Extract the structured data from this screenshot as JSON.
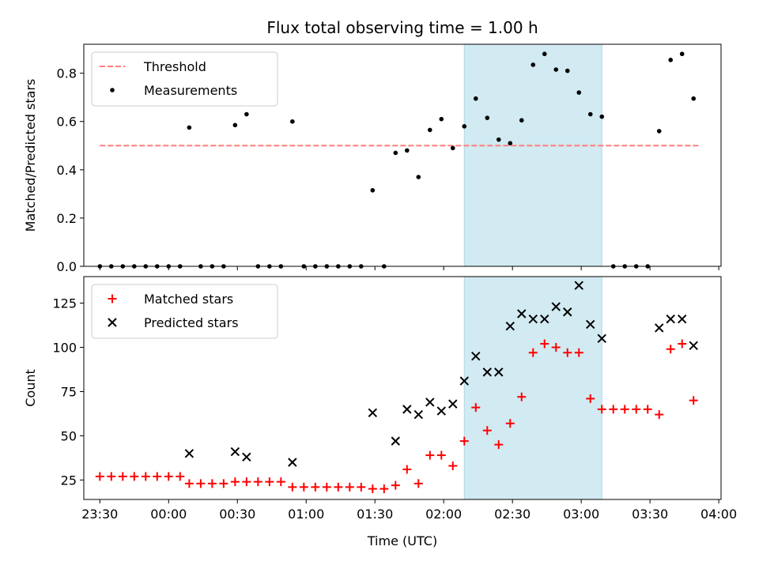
{
  "figure": {
    "title": "Flux total observing time = 1.00 h",
    "xlabel": "Time (UTC)"
  },
  "chart_data": [
    {
      "type": "scatter",
      "panel": "top",
      "ylabel": "Matched/Predicted stars",
      "xlim": [
        "23:23",
        "04:01"
      ],
      "ylim": [
        0,
        0.92
      ],
      "yticks": [
        0.0,
        0.2,
        0.4,
        0.6,
        0.8
      ],
      "yticklabels": [
        "0.0",
        "0.2",
        "0.4",
        "0.6",
        "0.8"
      ],
      "shaded_span": {
        "from": "02:09",
        "to": "03:09",
        "color": "#add8e6"
      },
      "legend_position": "upper left",
      "series": [
        {
          "name": "Threshold",
          "kind": "dashed-line",
          "color": "#ff7f7f",
          "x": [
            "23:30",
            "03:52"
          ],
          "y": [
            0.5,
            0.5
          ]
        },
        {
          "name": "Measurements",
          "kind": "points",
          "color": "#000000",
          "x": [
            "23:30",
            "23:35",
            "23:40",
            "23:45",
            "23:50",
            "23:55",
            "00:00",
            "00:05",
            "00:09",
            "00:14",
            "00:19",
            "00:24",
            "00:29",
            "00:34",
            "00:39",
            "00:44",
            "00:49",
            "00:54",
            "00:59",
            "01:04",
            "01:09",
            "01:14",
            "01:19",
            "01:24",
            "01:29",
            "01:34",
            "01:39",
            "01:44",
            "01:49",
            "01:54",
            "01:59",
            "02:04",
            "02:09",
            "02:14",
            "02:19",
            "02:24",
            "02:29",
            "02:34",
            "02:39",
            "02:44",
            "02:49",
            "02:54",
            "02:59",
            "03:04",
            "03:09",
            "03:14",
            "03:19",
            "03:24",
            "03:29",
            "03:34",
            "03:39",
            "03:44",
            "03:49"
          ],
          "y": [
            0,
            0,
            0,
            0,
            0,
            0,
            0,
            0,
            0.575,
            0,
            0,
            0,
            0.585,
            0.63,
            0,
            0,
            0,
            0.6,
            0,
            0,
            0,
            0,
            0,
            0,
            0.315,
            0,
            0.47,
            0.48,
            0.37,
            0.565,
            0.61,
            0.49,
            0.58,
            0.695,
            0.615,
            0.525,
            0.51,
            0.605,
            0.835,
            0.88,
            0.815,
            0.81,
            0.72,
            0.63,
            0.62,
            0,
            0,
            0,
            0,
            0.56,
            0.855,
            0.88,
            0.695
          ]
        }
      ]
    },
    {
      "type": "scatter",
      "panel": "bottom",
      "ylabel": "Count",
      "xlim": [
        "23:23",
        "04:01"
      ],
      "ylim": [
        14,
        140
      ],
      "yticks": [
        25,
        50,
        75,
        100,
        125
      ],
      "yticklabels": [
        "25",
        "50",
        "75",
        "100",
        "125"
      ],
      "xticks": [
        "23:30",
        "00:00",
        "00:30",
        "01:00",
        "01:30",
        "02:00",
        "02:30",
        "03:00",
        "03:30",
        "04:00"
      ],
      "shaded_span": {
        "from": "02:09",
        "to": "03:09",
        "color": "#add8e6"
      },
      "legend_position": "upper left",
      "series": [
        {
          "name": "Matched stars",
          "kind": "plus",
          "color": "#ff0000",
          "x": [
            "23:30",
            "23:35",
            "23:40",
            "23:45",
            "23:50",
            "23:55",
            "00:00",
            "00:05",
            "00:09",
            "00:14",
            "00:19",
            "00:24",
            "00:29",
            "00:34",
            "00:39",
            "00:44",
            "00:49",
            "00:54",
            "00:59",
            "01:04",
            "01:09",
            "01:14",
            "01:19",
            "01:24",
            "01:29",
            "01:34",
            "01:39",
            "01:44",
            "01:49",
            "01:54",
            "01:59",
            "02:04",
            "02:09",
            "02:14",
            "02:19",
            "02:24",
            "02:29",
            "02:34",
            "02:39",
            "02:44",
            "02:49",
            "02:54",
            "02:59",
            "03:04",
            "03:09",
            "03:14",
            "03:19",
            "03:24",
            "03:29",
            "03:34",
            "03:39",
            "03:44",
            "03:49"
          ],
          "y": [
            27,
            27,
            27,
            27,
            27,
            27,
            27,
            27,
            23,
            23,
            23,
            23,
            24,
            24,
            24,
            24,
            24,
            21,
            21,
            21,
            21,
            21,
            21,
            21,
            20,
            20,
            22,
            31,
            23,
            39,
            39,
            33,
            47,
            66,
            53,
            45,
            57,
            72,
            97,
            102,
            100,
            97,
            97,
            71,
            65,
            65,
            65,
            65,
            65,
            62,
            99,
            102,
            70
          ]
        },
        {
          "name": "Predicted stars",
          "kind": "x",
          "color": "#000000",
          "x": [
            "00:09",
            "00:29",
            "00:34",
            "00:54",
            "01:29",
            "01:39",
            "01:44",
            "01:49",
            "01:54",
            "01:59",
            "02:04",
            "02:09",
            "02:14",
            "02:19",
            "02:24",
            "02:29",
            "02:34",
            "02:39",
            "02:44",
            "02:49",
            "02:54",
            "02:59",
            "03:04",
            "03:09",
            "03:34",
            "03:39",
            "03:44",
            "03:49"
          ],
          "y": [
            40,
            41,
            38,
            35,
            63,
            47,
            65,
            62,
            69,
            64,
            68,
            81,
            95,
            86,
            86,
            112,
            119,
            116,
            116,
            123,
            120,
            135,
            113,
            105,
            111,
            116,
            116,
            101
          ]
        }
      ]
    }
  ]
}
